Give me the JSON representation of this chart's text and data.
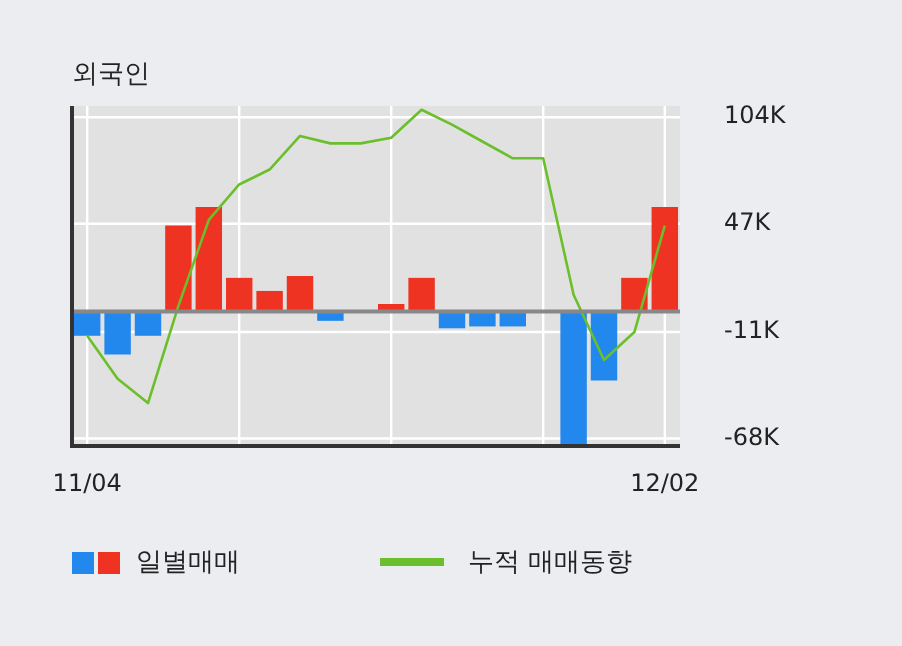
{
  "chart_data": {
    "type": "bar",
    "title": "외국인",
    "categories": [
      "11/04",
      null,
      null,
      null,
      null,
      null,
      null,
      null,
      null,
      null,
      null,
      null,
      null,
      null,
      null,
      null,
      null,
      null,
      null,
      "12/02"
    ],
    "series": [
      {
        "name": "일별매매",
        "colors": [
          "#2288ee",
          "#2288ee",
          "#2288ee",
          "#ee3322",
          "#ee3322",
          "#ee3322",
          "#ee3322",
          "#ee3322",
          "#2288ee",
          "#ee3322",
          "#ee3322",
          "#ee3322",
          "#2288ee",
          "#2288ee",
          "#2288ee",
          "#2288ee",
          "#2288ee",
          "#2288ee",
          "#ee3322",
          "#ee3322"
        ],
        "values": [
          -13,
          -23,
          -13,
          46,
          56,
          18,
          11,
          19,
          -5,
          0,
          4,
          18,
          -9,
          -8,
          -8,
          0,
          -72,
          -37,
          18,
          56
        ]
      },
      {
        "name": "누적 매매동향",
        "type": "line",
        "color": "#6abf2a",
        "values": [
          -13,
          -36,
          -49,
          3,
          49,
          68,
          76,
          94,
          90,
          90,
          93,
          108,
          100,
          91,
          82,
          82,
          9,
          -26,
          -11,
          46
        ]
      }
    ],
    "ylim": [
      -72,
      110
    ],
    "yticks": [
      {
        "value": 104,
        "label": "104K"
      },
      {
        "value": 47,
        "label": "47K"
      },
      {
        "value": -11,
        "label": "-11K"
      },
      {
        "value": -68,
        "label": "-68K"
      }
    ],
    "grid": true,
    "legend": "bottom"
  }
}
